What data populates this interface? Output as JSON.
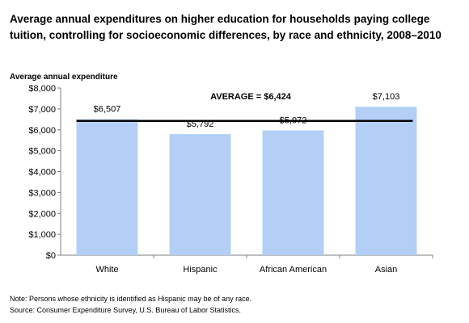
{
  "chart_data": {
    "type": "bar",
    "title": "Average annual expenditures on higher education for households paying college tuition, controlling for socioeconomic differences, by race and ethnicity, 2008–2010",
    "ylabel": "Average annual expenditure",
    "xlabel": "",
    "categories": [
      "White",
      "Hispanic",
      "African American",
      "Asian"
    ],
    "values": [
      6507,
      5792,
      5972,
      7103
    ],
    "value_labels": [
      "$6,507",
      "$5,792",
      "$5,972",
      "$7,103"
    ],
    "ylim": [
      0,
      8000
    ],
    "yticks": [
      0,
      1000,
      2000,
      3000,
      4000,
      5000,
      6000,
      7000,
      8000
    ],
    "ytick_labels": [
      "$0",
      "$1,000",
      "$2,000",
      "$3,000",
      "$4,000",
      "$5,000",
      "$6,000",
      "$7,000",
      "$8,000"
    ],
    "average": {
      "value": 6424,
      "label": "AVERAGE = $6,424"
    },
    "bar_color": "#b3cff5",
    "average_line_color": "#000000",
    "grid": false,
    "legend": "none"
  },
  "footer": {
    "note": "Note: Persons whose ethnicity is identified as Hispanic may be of any race.",
    "source": "Source: Consumer Expenditure Survey, U.S. Bureau of Labor Statistics."
  }
}
